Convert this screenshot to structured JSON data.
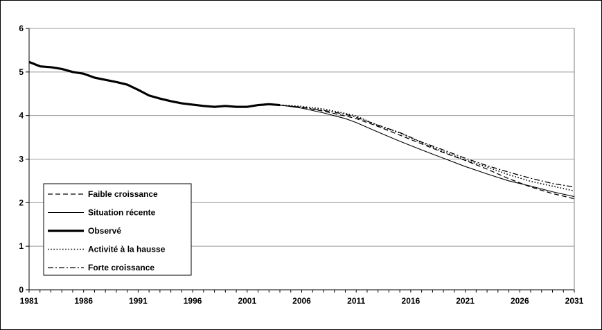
{
  "chart_data": {
    "type": "line",
    "title": "",
    "xlabel": "",
    "ylabel": "",
    "xlim": [
      1981,
      2031
    ],
    "ylim": [
      0,
      6
    ],
    "x_ticks": [
      1981,
      1986,
      1991,
      1996,
      2001,
      2006,
      2011,
      2016,
      2021,
      2026,
      2031
    ],
    "x_tick_labels": [
      "1981",
      "1986",
      "1991",
      "1996",
      "2001",
      "2006",
      "2011",
      "2016",
      "2021",
      "2026",
      "2031"
    ],
    "y_ticks": [
      0,
      1,
      2,
      3,
      4,
      5,
      6
    ],
    "y_tick_labels": [
      "0",
      "1",
      "2",
      "3",
      "4",
      "5",
      "6"
    ],
    "grid": "horizontal",
    "legend_position": "lower-left",
    "series": [
      {
        "name": "Faible croissance",
        "style": "dashed",
        "color": "#000000",
        "points": [
          [
            2004,
            4.24
          ],
          [
            2006,
            4.19
          ],
          [
            2008,
            4.1
          ],
          [
            2010,
            3.99
          ],
          [
            2011,
            3.93
          ],
          [
            2013,
            3.75
          ],
          [
            2015,
            3.55
          ],
          [
            2017,
            3.35
          ],
          [
            2019,
            3.15
          ],
          [
            2021,
            2.97
          ],
          [
            2023,
            2.77
          ],
          [
            2025,
            2.55
          ],
          [
            2027,
            2.36
          ],
          [
            2029,
            2.21
          ],
          [
            2031,
            2.09
          ]
        ]
      },
      {
        "name": "Situation récente",
        "style": "solid-thin",
        "color": "#000000",
        "points": [
          [
            2004,
            4.24
          ],
          [
            2006,
            4.17
          ],
          [
            2008,
            4.06
          ],
          [
            2010,
            3.93
          ],
          [
            2011,
            3.84
          ],
          [
            2013,
            3.62
          ],
          [
            2015,
            3.41
          ],
          [
            2017,
            3.21
          ],
          [
            2019,
            3.02
          ],
          [
            2021,
            2.83
          ],
          [
            2023,
            2.66
          ],
          [
            2025,
            2.5
          ],
          [
            2027,
            2.38
          ],
          [
            2029,
            2.25
          ],
          [
            2031,
            2.14
          ]
        ]
      },
      {
        "name": "Observé",
        "style": "solid-thick",
        "color": "#000000",
        "points": [
          [
            1981,
            5.23
          ],
          [
            1982,
            5.13
          ],
          [
            1983,
            5.11
          ],
          [
            1984,
            5.07
          ],
          [
            1985,
            5.0
          ],
          [
            1986,
            4.96
          ],
          [
            1987,
            4.87
          ],
          [
            1988,
            4.82
          ],
          [
            1989,
            4.77
          ],
          [
            1990,
            4.71
          ],
          [
            1991,
            4.59
          ],
          [
            1992,
            4.46
          ],
          [
            1993,
            4.39
          ],
          [
            1994,
            4.33
          ],
          [
            1995,
            4.28
          ],
          [
            1996,
            4.25
          ],
          [
            1997,
            4.22
          ],
          [
            1998,
            4.2
          ],
          [
            1999,
            4.22
          ],
          [
            2000,
            4.2
          ],
          [
            2001,
            4.2
          ],
          [
            2002,
            4.24
          ],
          [
            2003,
            4.26
          ],
          [
            2004,
            4.24
          ]
        ]
      },
      {
        "name": "Activité à la hausse",
        "style": "dotted",
        "color": "#000000",
        "points": [
          [
            2004,
            4.24
          ],
          [
            2006,
            4.21
          ],
          [
            2008,
            4.15
          ],
          [
            2010,
            4.05
          ],
          [
            2011,
            3.99
          ],
          [
            2013,
            3.77
          ],
          [
            2015,
            3.6
          ],
          [
            2017,
            3.38
          ],
          [
            2019,
            3.17
          ],
          [
            2021,
            2.98
          ],
          [
            2023,
            2.82
          ],
          [
            2025,
            2.64
          ],
          [
            2027,
            2.49
          ],
          [
            2029,
            2.38
          ],
          [
            2031,
            2.27
          ]
        ]
      },
      {
        "name": "Forte croissance",
        "style": "dash-dot",
        "color": "#000000",
        "points": [
          [
            2004,
            4.24
          ],
          [
            2006,
            4.19
          ],
          [
            2008,
            4.12
          ],
          [
            2010,
            4.03
          ],
          [
            2011,
            3.96
          ],
          [
            2013,
            3.78
          ],
          [
            2015,
            3.61
          ],
          [
            2017,
            3.39
          ],
          [
            2019,
            3.21
          ],
          [
            2021,
            3.02
          ],
          [
            2023,
            2.85
          ],
          [
            2025,
            2.7
          ],
          [
            2027,
            2.56
          ],
          [
            2029,
            2.44
          ],
          [
            2031,
            2.36
          ]
        ]
      }
    ]
  }
}
